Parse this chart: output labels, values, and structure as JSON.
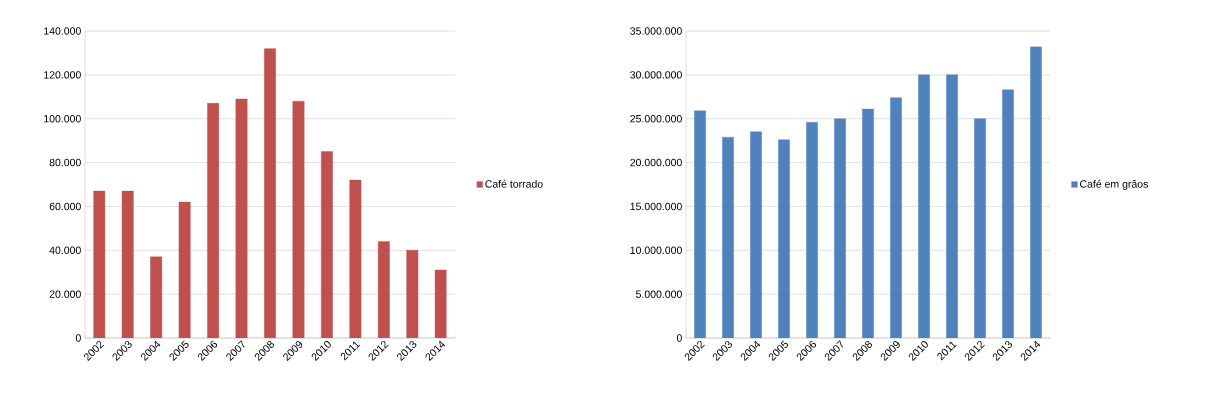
{
  "chart_data": [
    {
      "type": "bar",
      "categories": [
        "2002",
        "2003",
        "2004",
        "2005",
        "2006",
        "2007",
        "2008",
        "2009",
        "2010",
        "2011",
        "2012",
        "2013",
        "2014"
      ],
      "series": [
        {
          "name": "Café torrado",
          "color": "#c0504d",
          "values": [
            67000,
            67000,
            37000,
            62000,
            107000,
            109000,
            132000,
            108000,
            85000,
            72000,
            44000,
            40000,
            31000
          ]
        }
      ],
      "ylim": [
        0,
        140000
      ],
      "yticks": [
        0,
        {
          "value": 20000,
          "label": "20.000"
        },
        {
          "value": 40000,
          "label": "40.000"
        },
        {
          "value": 60000,
          "label": "60.000"
        },
        {
          "value": 80000,
          "label": "80.000"
        },
        {
          "value": 100000,
          "label": "100.000"
        },
        {
          "value": 120000,
          "label": "120.000"
        },
        {
          "value": 140000,
          "label": "140.000"
        }
      ],
      "grid": "y",
      "legend": "right"
    },
    {
      "type": "bar",
      "categories": [
        "2002",
        "2003",
        "2004",
        "2005",
        "2006",
        "2007",
        "2008",
        "2009",
        "2010",
        "2011",
        "2012",
        "2013",
        "2014"
      ],
      "series": [
        {
          "name": "Café em grãos",
          "color": "#4f81bd",
          "values": [
            25900000,
            22900000,
            23500000,
            22600000,
            24600000,
            25000000,
            26100000,
            27400000,
            30000000,
            30000000,
            25000000,
            28300000,
            33200000
          ]
        }
      ],
      "ylim": [
        0,
        35000000
      ],
      "yticks": [
        0,
        {
          "value": 5000000,
          "label": "5.000.000"
        },
        {
          "value": 10000000,
          "label": "10.000.000"
        },
        {
          "value": 15000000,
          "label": "15.000.000"
        },
        {
          "value": 20000000,
          "label": "20.000.000"
        },
        {
          "value": 25000000,
          "label": "25.000.000"
        },
        {
          "value": 30000000,
          "label": "30.000.000"
        },
        {
          "value": 35000000,
          "label": "35.000.000"
        }
      ],
      "grid": "y",
      "legend": "right"
    }
  ]
}
